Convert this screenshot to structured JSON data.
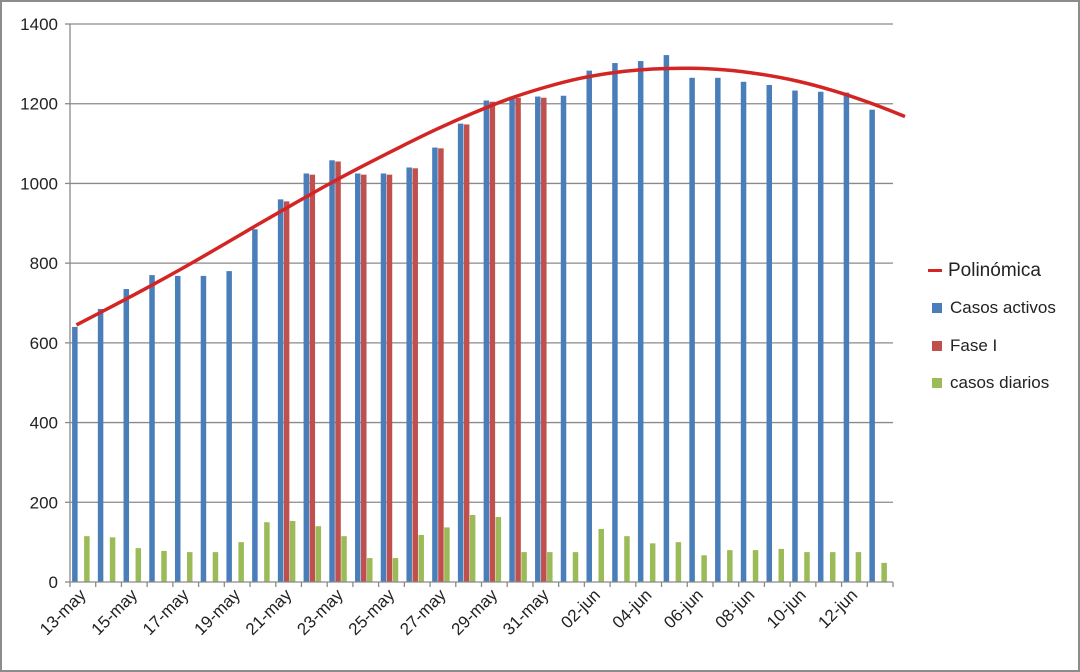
{
  "chart_data": {
    "type": "bar",
    "title": "",
    "xlabel": "",
    "ylabel": "",
    "ylim": [
      0,
      1400
    ],
    "yticks": [
      0,
      200,
      400,
      600,
      800,
      1000,
      1200,
      1400
    ],
    "grid": true,
    "legend_position": "right",
    "categories": [
      "13-may",
      "14-may",
      "15-may",
      "16-may",
      "17-may",
      "18-may",
      "19-may",
      "20-may",
      "21-may",
      "22-may",
      "23-may",
      "24-may",
      "25-may",
      "26-may",
      "27-may",
      "28-may",
      "29-may",
      "30-may",
      "31-may",
      "01-jun",
      "02-jun",
      "03-jun",
      "04-jun",
      "05-jun",
      "06-jun",
      "07-jun",
      "08-jun",
      "09-jun",
      "10-jun",
      "11-jun",
      "12-jun",
      "13-jun"
    ],
    "tick_labels": [
      "13-may",
      "15-may",
      "17-may",
      "19-may",
      "21-may",
      "23-may",
      "25-may",
      "27-may",
      "29-may",
      "31-may",
      "02-jun",
      "04-jun",
      "06-jun",
      "08-jun",
      "10-jun",
      "12-jun"
    ],
    "series": [
      {
        "name": "Casos activos",
        "color": "#4a7ebb",
        "values": [
          640,
          685,
          735,
          770,
          768,
          768,
          780,
          885,
          960,
          1025,
          1058,
          1025,
          1025,
          1040,
          1090,
          1150,
          1208,
          1218,
          1218,
          1220,
          1283,
          1302,
          1307,
          1322,
          1265,
          1265,
          1255,
          1247,
          1233,
          1230,
          1228,
          1185
        ]
      },
      {
        "name": "Fase I",
        "color": "#c0504d",
        "values": [
          null,
          null,
          null,
          null,
          null,
          null,
          null,
          null,
          955,
          1022,
          1055,
          1022,
          1022,
          1038,
          1088,
          1148,
          1205,
          1215,
          1215,
          null,
          null,
          null,
          null,
          null,
          null,
          null,
          null,
          null,
          null,
          null,
          null,
          null
        ]
      },
      {
        "name": "casos diarios",
        "color": "#9bbb59",
        "values": [
          115,
          112,
          85,
          78,
          75,
          75,
          100,
          150,
          153,
          140,
          115,
          60,
          60,
          118,
          137,
          168,
          163,
          75,
          75,
          75,
          133,
          115,
          97,
          100,
          67,
          80,
          80,
          83,
          75,
          75,
          75,
          48
        ]
      }
    ],
    "trendline": {
      "name": "Polinómica",
      "color": "#d42525",
      "type": "polynomial",
      "values": [
        645,
        692,
        740,
        790,
        842,
        895,
        947,
        998,
        1046,
        1092,
        1136,
        1176,
        1212,
        1241,
        1264,
        1279,
        1287,
        1289,
        1285,
        1274,
        1257,
        1233,
        1203,
        1168
      ]
    }
  },
  "legend": {
    "items": [
      {
        "label": "Polinómica",
        "color": "#d42525",
        "kind": "line"
      },
      {
        "label": "Casos activos",
        "color": "#4a7ebb",
        "kind": "box"
      },
      {
        "label": "Fase I",
        "color": "#c0504d",
        "kind": "box"
      },
      {
        "label": "casos diarios",
        "color": "#9bbb59",
        "kind": "box"
      }
    ]
  }
}
